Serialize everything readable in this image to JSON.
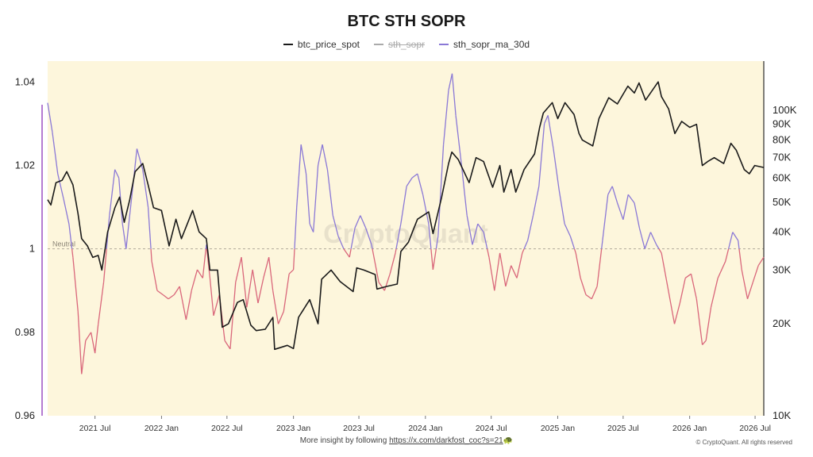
{
  "chart_data": {
    "type": "line",
    "title": "BTC STH SOPR",
    "watermark": "CryptoQuant",
    "neutral_label": "Neutral",
    "neutral_value": 1,
    "background_color": "#fdf6dc",
    "y_left": {
      "ticks": [
        1.04,
        1.02,
        1,
        0.98,
        0.96
      ],
      "tick_labels": [
        "1.04",
        "1.02",
        "1",
        "0.98",
        "0.96"
      ],
      "range": [
        0.96,
        1.045
      ]
    },
    "y_right": {
      "scale": "log",
      "ticks": [
        100000,
        90000,
        80000,
        70000,
        60000,
        50000,
        40000,
        30000,
        20000,
        10000
      ],
      "tick_labels": [
        "100K",
        "90K",
        "80K",
        "70K",
        "60K",
        "50K",
        "40K",
        "30K",
        "20K",
        "10K"
      ],
      "range": [
        10000,
        145000
      ]
    },
    "x_range": [
      "2021-02-20",
      "2026-07-25"
    ],
    "x_ticks": [
      {
        "date": "2021-07-01",
        "label": "2021 Jul"
      },
      {
        "date": "2022-01-01",
        "label": "2022 Jan"
      },
      {
        "date": "2022-07-01",
        "label": "2022 Jul"
      },
      {
        "date": "2023-01-01",
        "label": "2023 Jan"
      },
      {
        "date": "2023-07-01",
        "label": "2023 Jul"
      },
      {
        "date": "2024-01-01",
        "label": "2024 Jan"
      },
      {
        "date": "2024-07-01",
        "label": "2024 Jul"
      },
      {
        "date": "2025-01-01",
        "label": "2025 Jan"
      },
      {
        "date": "2025-07-01",
        "label": "2025 Jul"
      },
      {
        "date": "2026-01-01",
        "label": "2026 Jan"
      },
      {
        "date": "2026-07-01",
        "label": "2026 Jul"
      }
    ],
    "legend": [
      {
        "key": "price",
        "name": "btc_price_spot",
        "color": "#1a1a1a",
        "hidden": false
      },
      {
        "key": "sopr",
        "name": "sth_sopr",
        "color": "#aaaaaa",
        "hidden": true
      },
      {
        "key": "ma",
        "name": "sth_sopr_ma_30d",
        "color": "#8a78d6",
        "hidden": false
      }
    ],
    "sopr_colors": {
      "above_neutral": "#8a78d6",
      "below_neutral": "#d9667a"
    },
    "series": [
      {
        "name": "btc_price_spot",
        "axis": "right",
        "color": "#1a1a1a",
        "points": [
          [
            "2021-02-20",
            51000
          ],
          [
            "2021-03-01",
            49000
          ],
          [
            "2021-03-15",
            58000
          ],
          [
            "2021-04-01",
            59000
          ],
          [
            "2021-04-14",
            63000
          ],
          [
            "2021-05-01",
            57000
          ],
          [
            "2021-05-15",
            46000
          ],
          [
            "2021-05-25",
            38000
          ],
          [
            "2021-06-10",
            36000
          ],
          [
            "2021-06-25",
            33000
          ],
          [
            "2021-07-10",
            33500
          ],
          [
            "2021-07-20",
            30000
          ],
          [
            "2021-08-05",
            40000
          ],
          [
            "2021-08-25",
            48000
          ],
          [
            "2021-09-07",
            52000
          ],
          [
            "2021-09-20",
            43000
          ],
          [
            "2021-10-05",
            51000
          ],
          [
            "2021-10-20",
            63000
          ],
          [
            "2021-11-10",
            67000
          ],
          [
            "2021-11-25",
            57000
          ],
          [
            "2021-12-10",
            48000
          ],
          [
            "2022-01-01",
            47000
          ],
          [
            "2022-01-22",
            36000
          ],
          [
            "2022-02-10",
            44000
          ],
          [
            "2022-02-25",
            38000
          ],
          [
            "2022-03-28",
            47000
          ],
          [
            "2022-04-15",
            40000
          ],
          [
            "2022-05-05",
            38000
          ],
          [
            "2022-05-15",
            30000
          ],
          [
            "2022-06-05",
            30000
          ],
          [
            "2022-06-18",
            19500
          ],
          [
            "2022-07-05",
            20000
          ],
          [
            "2022-07-30",
            23500
          ],
          [
            "2022-08-15",
            24000
          ],
          [
            "2022-09-05",
            19800
          ],
          [
            "2022-09-20",
            19000
          ],
          [
            "2022-10-15",
            19200
          ],
          [
            "2022-11-05",
            21000
          ],
          [
            "2022-11-10",
            16500
          ],
          [
            "2022-12-15",
            17000
          ],
          [
            "2023-01-01",
            16600
          ],
          [
            "2023-01-15",
            21000
          ],
          [
            "2023-02-15",
            24000
          ],
          [
            "2023-03-10",
            20000
          ],
          [
            "2023-03-20",
            28000
          ],
          [
            "2023-04-15",
            30000
          ],
          [
            "2023-05-10",
            27500
          ],
          [
            "2023-06-15",
            25500
          ],
          [
            "2023-06-25",
            30500
          ],
          [
            "2023-07-15",
            30000
          ],
          [
            "2023-08-15",
            29000
          ],
          [
            "2023-08-20",
            26000
          ],
          [
            "2023-09-15",
            26500
          ],
          [
            "2023-10-15",
            27000
          ],
          [
            "2023-10-25",
            34500
          ],
          [
            "2023-11-15",
            37000
          ],
          [
            "2023-12-10",
            44000
          ],
          [
            "2024-01-10",
            46500
          ],
          [
            "2024-01-22",
            39500
          ],
          [
            "2024-02-15",
            52000
          ],
          [
            "2024-03-05",
            67000
          ],
          [
            "2024-03-14",
            73000
          ],
          [
            "2024-04-01",
            69000
          ],
          [
            "2024-05-01",
            58000
          ],
          [
            "2024-05-20",
            70000
          ],
          [
            "2024-06-10",
            68000
          ],
          [
            "2024-07-05",
            56000
          ],
          [
            "2024-07-25",
            66000
          ],
          [
            "2024-08-05",
            54000
          ],
          [
            "2024-08-25",
            64000
          ],
          [
            "2024-09-07",
            54000
          ],
          [
            "2024-09-30",
            64000
          ],
          [
            "2024-10-29",
            72000
          ],
          [
            "2024-11-12",
            88000
          ],
          [
            "2024-11-22",
            98000
          ],
          [
            "2024-12-17",
            106000
          ],
          [
            "2025-01-01",
            94000
          ],
          [
            "2025-01-21",
            106000
          ],
          [
            "2025-02-15",
            97000
          ],
          [
            "2025-03-01",
            84000
          ],
          [
            "2025-03-10",
            80000
          ],
          [
            "2025-04-08",
            76500
          ],
          [
            "2025-04-25",
            94000
          ],
          [
            "2025-05-22",
            110000
          ],
          [
            "2025-06-15",
            105000
          ],
          [
            "2025-07-14",
            120000
          ],
          [
            "2025-08-01",
            114000
          ],
          [
            "2025-08-14",
            123000
          ],
          [
            "2025-09-01",
            108000
          ],
          [
            "2025-10-06",
            124000
          ],
          [
            "2025-10-15",
            111000
          ],
          [
            "2025-11-04",
            101000
          ],
          [
            "2025-11-21",
            84000
          ],
          [
            "2025-12-10",
            92000
          ],
          [
            "2026-01-01",
            88000
          ],
          [
            "2026-01-20",
            90000
          ],
          [
            "2026-02-05",
            66000
          ],
          [
            "2026-02-20",
            68000
          ],
          [
            "2026-03-10",
            70000
          ],
          [
            "2026-04-05",
            67000
          ],
          [
            "2026-04-25",
            78000
          ],
          [
            "2026-05-10",
            74000
          ],
          [
            "2026-06-01",
            64000
          ],
          [
            "2026-06-15",
            62000
          ],
          [
            "2026-06-30",
            66000
          ],
          [
            "2026-07-25",
            65000
          ]
        ]
      },
      {
        "name": "sth_sopr_ma_30d",
        "axis": "left",
        "points": [
          [
            "2021-02-20",
            1.035
          ],
          [
            "2021-03-05",
            1.028
          ],
          [
            "2021-03-20",
            1.018
          ],
          [
            "2021-04-05",
            1.012
          ],
          [
            "2021-04-20",
            1.006
          ],
          [
            "2021-05-01",
            0.998
          ],
          [
            "2021-05-15",
            0.985
          ],
          [
            "2021-05-25",
            0.97
          ],
          [
            "2021-06-05",
            0.978
          ],
          [
            "2021-06-20",
            0.98
          ],
          [
            "2021-07-01",
            0.975
          ],
          [
            "2021-07-10",
            0.982
          ],
          [
            "2021-07-25",
            0.992
          ],
          [
            "2021-08-10",
            1.008
          ],
          [
            "2021-08-25",
            1.019
          ],
          [
            "2021-09-05",
            1.017
          ],
          [
            "2021-09-15",
            1.006
          ],
          [
            "2021-09-25",
            1.0
          ],
          [
            "2021-10-10",
            1.012
          ],
          [
            "2021-10-25",
            1.024
          ],
          [
            "2021-11-10",
            1.019
          ],
          [
            "2021-11-25",
            1.01
          ],
          [
            "2021-12-05",
            0.997
          ],
          [
            "2021-12-20",
            0.99
          ],
          [
            "2022-01-05",
            0.989
          ],
          [
            "2022-01-20",
            0.988
          ],
          [
            "2022-02-05",
            0.989
          ],
          [
            "2022-02-20",
            0.991
          ],
          [
            "2022-03-10",
            0.983
          ],
          [
            "2022-03-25",
            0.99
          ],
          [
            "2022-04-10",
            0.995
          ],
          [
            "2022-04-25",
            0.993
          ],
          [
            "2022-05-05",
            1.001
          ],
          [
            "2022-05-15",
            0.993
          ],
          [
            "2022-05-25",
            0.984
          ],
          [
            "2022-06-10",
            0.989
          ],
          [
            "2022-06-25",
            0.978
          ],
          [
            "2022-07-10",
            0.976
          ],
          [
            "2022-07-25",
            0.992
          ],
          [
            "2022-08-10",
            0.998
          ],
          [
            "2022-08-25",
            0.986
          ],
          [
            "2022-09-10",
            0.995
          ],
          [
            "2022-09-25",
            0.987
          ],
          [
            "2022-10-10",
            0.993
          ],
          [
            "2022-10-25",
            0.998
          ],
          [
            "2022-11-05",
            0.99
          ],
          [
            "2022-11-20",
            0.982
          ],
          [
            "2022-12-05",
            0.985
          ],
          [
            "2022-12-20",
            0.994
          ],
          [
            "2023-01-01",
            0.995
          ],
          [
            "2023-01-10",
            1.01
          ],
          [
            "2023-01-22",
            1.025
          ],
          [
            "2023-02-05",
            1.018
          ],
          [
            "2023-02-15",
            1.006
          ],
          [
            "2023-02-25",
            1.004
          ],
          [
            "2023-03-10",
            1.02
          ],
          [
            "2023-03-22",
            1.025
          ],
          [
            "2023-04-05",
            1.019
          ],
          [
            "2023-04-20",
            1.008
          ],
          [
            "2023-05-05",
            1.003
          ],
          [
            "2023-05-20",
            1.0
          ],
          [
            "2023-06-05",
            0.998
          ],
          [
            "2023-06-20",
            1.005
          ],
          [
            "2023-07-05",
            1.008
          ],
          [
            "2023-07-20",
            1.005
          ],
          [
            "2023-08-05",
            1.001
          ],
          [
            "2023-08-25",
            0.992
          ],
          [
            "2023-09-10",
            0.99
          ],
          [
            "2023-09-25",
            0.994
          ],
          [
            "2023-10-10",
            0.999
          ],
          [
            "2023-10-25",
            1.006
          ],
          [
            "2023-11-10",
            1.015
          ],
          [
            "2023-11-25",
            1.017
          ],
          [
            "2023-12-10",
            1.018
          ],
          [
            "2023-12-25",
            1.013
          ],
          [
            "2024-01-10",
            1.006
          ],
          [
            "2024-01-22",
            0.995
          ],
          [
            "2024-02-05",
            1.003
          ],
          [
            "2024-02-20",
            1.025
          ],
          [
            "2024-03-05",
            1.038
          ],
          [
            "2024-03-15",
            1.042
          ],
          [
            "2024-03-25",
            1.032
          ],
          [
            "2024-04-10",
            1.02
          ],
          [
            "2024-04-25",
            1.008
          ],
          [
            "2024-05-10",
            1.001
          ],
          [
            "2024-05-25",
            1.006
          ],
          [
            "2024-06-10",
            1.004
          ],
          [
            "2024-06-25",
            0.998
          ],
          [
            "2024-07-10",
            0.99
          ],
          [
            "2024-07-25",
            0.999
          ],
          [
            "2024-08-10",
            0.991
          ],
          [
            "2024-08-25",
            0.996
          ],
          [
            "2024-09-10",
            0.993
          ],
          [
            "2024-09-25",
            0.999
          ],
          [
            "2024-10-10",
            1.002
          ],
          [
            "2024-10-25",
            1.008
          ],
          [
            "2024-11-10",
            1.015
          ],
          [
            "2024-11-25",
            1.03
          ],
          [
            "2024-12-05",
            1.032
          ],
          [
            "2024-12-20",
            1.024
          ],
          [
            "2025-01-05",
            1.014
          ],
          [
            "2025-01-20",
            1.006
          ],
          [
            "2025-02-05",
            1.003
          ],
          [
            "2025-02-20",
            0.999
          ],
          [
            "2025-03-05",
            0.993
          ],
          [
            "2025-03-20",
            0.989
          ],
          [
            "2025-04-05",
            0.988
          ],
          [
            "2025-04-20",
            0.991
          ],
          [
            "2025-05-05",
            1.002
          ],
          [
            "2025-05-20",
            1.013
          ],
          [
            "2025-06-01",
            1.015
          ],
          [
            "2025-06-15",
            1.011
          ],
          [
            "2025-07-01",
            1.007
          ],
          [
            "2025-07-15",
            1.013
          ],
          [
            "2025-08-01",
            1.011
          ],
          [
            "2025-08-15",
            1.005
          ],
          [
            "2025-08-30",
            1.0
          ],
          [
            "2025-09-15",
            1.004
          ],
          [
            "2025-10-01",
            1.001
          ],
          [
            "2025-10-15",
            0.999
          ],
          [
            "2025-11-01",
            0.991
          ],
          [
            "2025-11-20",
            0.982
          ],
          [
            "2025-12-05",
            0.987
          ],
          [
            "2025-12-20",
            0.993
          ],
          [
            "2026-01-05",
            0.994
          ],
          [
            "2026-01-20",
            0.988
          ],
          [
            "2026-02-05",
            0.977
          ],
          [
            "2026-02-15",
            0.978
          ],
          [
            "2026-03-01",
            0.986
          ],
          [
            "2026-03-20",
            0.993
          ],
          [
            "2026-04-10",
            0.997
          ],
          [
            "2026-04-30",
            1.004
          ],
          [
            "2026-05-15",
            1.002
          ],
          [
            "2026-05-25",
            0.995
          ],
          [
            "2026-06-10",
            0.988
          ],
          [
            "2026-06-25",
            0.992
          ],
          [
            "2026-07-10",
            0.996
          ],
          [
            "2026-07-25",
            0.998
          ]
        ]
      }
    ]
  },
  "footer": {
    "text": "More insight by following ",
    "link": "https://x.com/darkfost_coc?s=21",
    "emoji": "🐢",
    "copyright": "© CryptoQuant. All rights reserved"
  }
}
